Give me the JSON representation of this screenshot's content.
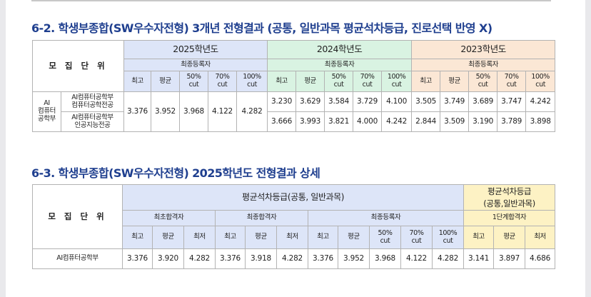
{
  "sec1": {
    "title": "6-2. 학생부종합(SW우수자전형) 3개년 전형결과 (공통, 일반과목 평균석차등급, 진로선택 반영 X)",
    "unit_label": "모 집 단 위",
    "years": [
      "2025학년도",
      "2024학년도",
      "2023학년도"
    ],
    "sub": "최종등록자",
    "cols": [
      "최고",
      "평균",
      "50%\ncut",
      "70%\ncut",
      "100%\ncut"
    ],
    "college": "AI\n컴퓨터\n공학부",
    "majors": [
      "AI컴퓨터공학부\n컴퓨터공학전공",
      "AI컴퓨터공학부\n인공지능전공"
    ],
    "y2025": [
      "3.376",
      "3.952",
      "3.968",
      "4.122",
      "4.282"
    ],
    "y2024": [
      [
        "3.230",
        "3.629",
        "3.584",
        "3.729",
        "4.100"
      ],
      [
        "3.666",
        "3.993",
        "3.821",
        "4.000",
        "4.242"
      ]
    ],
    "y2023": [
      [
        "3.505",
        "3.749",
        "3.689",
        "3.747",
        "4.242"
      ],
      [
        "2.844",
        "3.509",
        "3.190",
        "3.789",
        "3.898"
      ]
    ]
  },
  "sec2": {
    "title": "6-3. 학생부종합(SW우수자전형) 2025학년도 전형결과 상세",
    "unit_label": "모 집 단 위",
    "main_header": "평균석차등급(공통, 일반과목)",
    "side_header": "평균석차등급\n(공통,일반과목)",
    "groups": [
      "최초합격자",
      "최종합격자",
      "최종등록자"
    ],
    "side_group": "1단계합격자",
    "cols_a": [
      "최고",
      "평균",
      "최저"
    ],
    "cols_b": [
      "최고",
      "평균",
      "최저"
    ],
    "cols_c": [
      "최고",
      "평균",
      "50%\ncut",
      "70%\ncut",
      "100%\ncut"
    ],
    "cols_d": [
      "최고",
      "평균",
      "최저"
    ],
    "row_label": "AI컴퓨터공학부",
    "values": [
      "3.376",
      "3.920",
      "4.282",
      "3.376",
      "3.918",
      "4.282",
      "3.376",
      "3.952",
      "3.968",
      "4.122",
      "4.282",
      "3.141",
      "3.897",
      "4.686"
    ]
  }
}
